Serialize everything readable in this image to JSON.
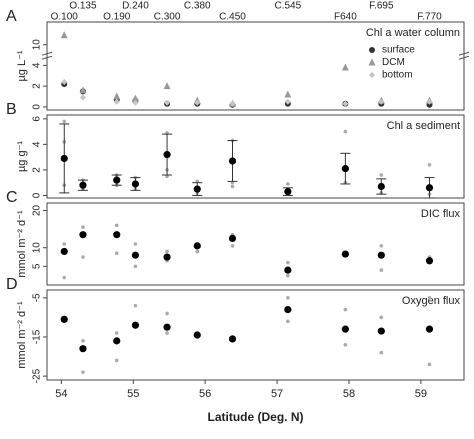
{
  "chart_data": [
    {
      "type": "scatter",
      "panel_label": "A",
      "title": "Chl a water column",
      "ylabel": "µg L⁻¹",
      "stations": [
        "O.100",
        "O.135",
        "O.190",
        "D.240",
        "C.300",
        "C.380",
        "C.450",
        "C.545",
        "F640",
        "F.695",
        "F.770"
      ],
      "x": [
        54.04,
        54.3,
        54.77,
        55.03,
        55.47,
        55.89,
        56.38,
        57.15,
        57.95,
        58.45,
        59.12
      ],
      "xlim": [
        53.8,
        59.6
      ],
      "ylim": [
        -0.3,
        11.2
      ],
      "ybreak": [
        4.5,
        9.5
      ],
      "yticks": [
        0,
        2,
        4,
        10
      ],
      "legend": "right",
      "series": [
        {
          "name": "surface",
          "color": "#333333",
          "marker": "circle",
          "values": [
            2.2,
            1.5,
            0.7,
            0.6,
            0.3,
            0.3,
            0.2,
            0.3,
            0.3,
            0.3,
            0.2
          ]
        },
        {
          "name": "DCM",
          "color": "#999999",
          "marker": "triangle",
          "values": [
            10.5,
            1.6,
            1.0,
            0.8,
            2.0,
            0.6,
            0.3,
            1.2,
            3.8,
            0.6,
            0.6
          ]
        },
        {
          "name": "bottom",
          "color": "#c4c4c4",
          "marker": "diamond",
          "values": [
            2.4,
            0.9,
            0.5,
            0.4,
            0.4,
            0.4,
            0.3,
            0.5,
            0.3,
            0.5,
            0.5
          ]
        }
      ]
    },
    {
      "type": "errorbar",
      "panel_label": "B",
      "title": "Chl a sediment",
      "ylabel": "µg g⁻¹",
      "x": [
        54.04,
        54.3,
        54.77,
        55.03,
        55.47,
        55.89,
        56.38,
        57.15,
        57.95,
        58.45,
        59.12
      ],
      "xlim": [
        53.8,
        59.6
      ],
      "ylim": [
        -0.2,
        6.3
      ],
      "yticks": [
        0,
        2,
        4,
        6
      ],
      "color": "#000000",
      "replicate_color": "#aaaaaa",
      "values": [
        2.9,
        0.8,
        1.2,
        0.9,
        3.2,
        0.5,
        2.7,
        0.3,
        2.1,
        0.7,
        0.6
      ],
      "errors": [
        2.7,
        0.4,
        0.4,
        0.5,
        1.6,
        0.5,
        1.6,
        0.3,
        1.2,
        0.6,
        0.8
      ],
      "replicates": [
        [
          5.8,
          4.2,
          0.8
        ],
        [
          1.2,
          0.5
        ],
        [
          1.6,
          0.8
        ],
        [
          1.4,
          0.5
        ],
        [
          4.9,
          2.0,
          1.5
        ],
        [
          1.1,
          0.2
        ],
        [
          4.3,
          1.0,
          0.7
        ],
        [
          0.9,
          0.1
        ],
        [
          5.0,
          1.0
        ],
        [
          1.6,
          0.2
        ],
        [
          2.4,
          0.1
        ]
      ]
    },
    {
      "type": "scatter",
      "panel_label": "C",
      "title": "DIC flux",
      "ylabel": "mmol m⁻² d⁻¹",
      "x": [
        54.04,
        54.3,
        54.77,
        55.03,
        55.47,
        55.89,
        56.38,
        57.15,
        57.95,
        58.45,
        59.12
      ],
      "xlim": [
        53.8,
        59.6
      ],
      "ylim": [
        0,
        22
      ],
      "yticks": [
        5,
        10,
        20
      ],
      "color": "#000000",
      "replicate_color": "#aaaaaa",
      "values": [
        9,
        13.5,
        13.5,
        8,
        7.5,
        10.5,
        12.5,
        4,
        8.3,
        8,
        6.5
      ],
      "replicates": [
        [
          11,
          2
        ],
        [
          15.5,
          7.5
        ],
        [
          16,
          8.5
        ],
        [
          11,
          5
        ],
        [
          9,
          6.5
        ],
        [
          11,
          9
        ],
        [
          13.5,
          10.5
        ],
        [
          6,
          2.5
        ],
        [
          8.5,
          8
        ],
        [
          10.5,
          4
        ],
        [
          7.5,
          6
        ]
      ]
    },
    {
      "type": "scatter",
      "panel_label": "D",
      "title": "Oxygen flux",
      "ylabel": "mmol m⁻² d⁻¹",
      "x": [
        54.04,
        54.3,
        54.77,
        55.03,
        55.47,
        55.89,
        56.38,
        57.15,
        57.95,
        58.45,
        59.12
      ],
      "xlim": [
        53.8,
        59.6
      ],
      "ylim": [
        -26,
        -3
      ],
      "yticks": [
        -5,
        -15,
        -25
      ],
      "color": "#000000",
      "replicate_color": "#aaaaaa",
      "values": [
        -10.5,
        -18,
        -16,
        -12,
        -12.5,
        -14.5,
        -15.5,
        -8,
        -13,
        -13.5,
        -13
      ],
      "replicates": [
        [
          -10,
          -11
        ],
        [
          -24,
          -16
        ],
        [
          -21,
          -14
        ],
        [
          -7,
          -12
        ],
        [
          -9,
          -14
        ],
        [
          -14,
          -15
        ],
        [
          -15,
          -16
        ],
        [
          -5,
          -11
        ],
        [
          -8,
          -17
        ],
        [
          -10,
          -19
        ],
        [
          -5,
          -22
        ]
      ],
      "xticks": [
        54,
        55,
        56,
        57,
        58,
        59
      ],
      "xlabel": "Latitude (Deg. N)"
    }
  ]
}
